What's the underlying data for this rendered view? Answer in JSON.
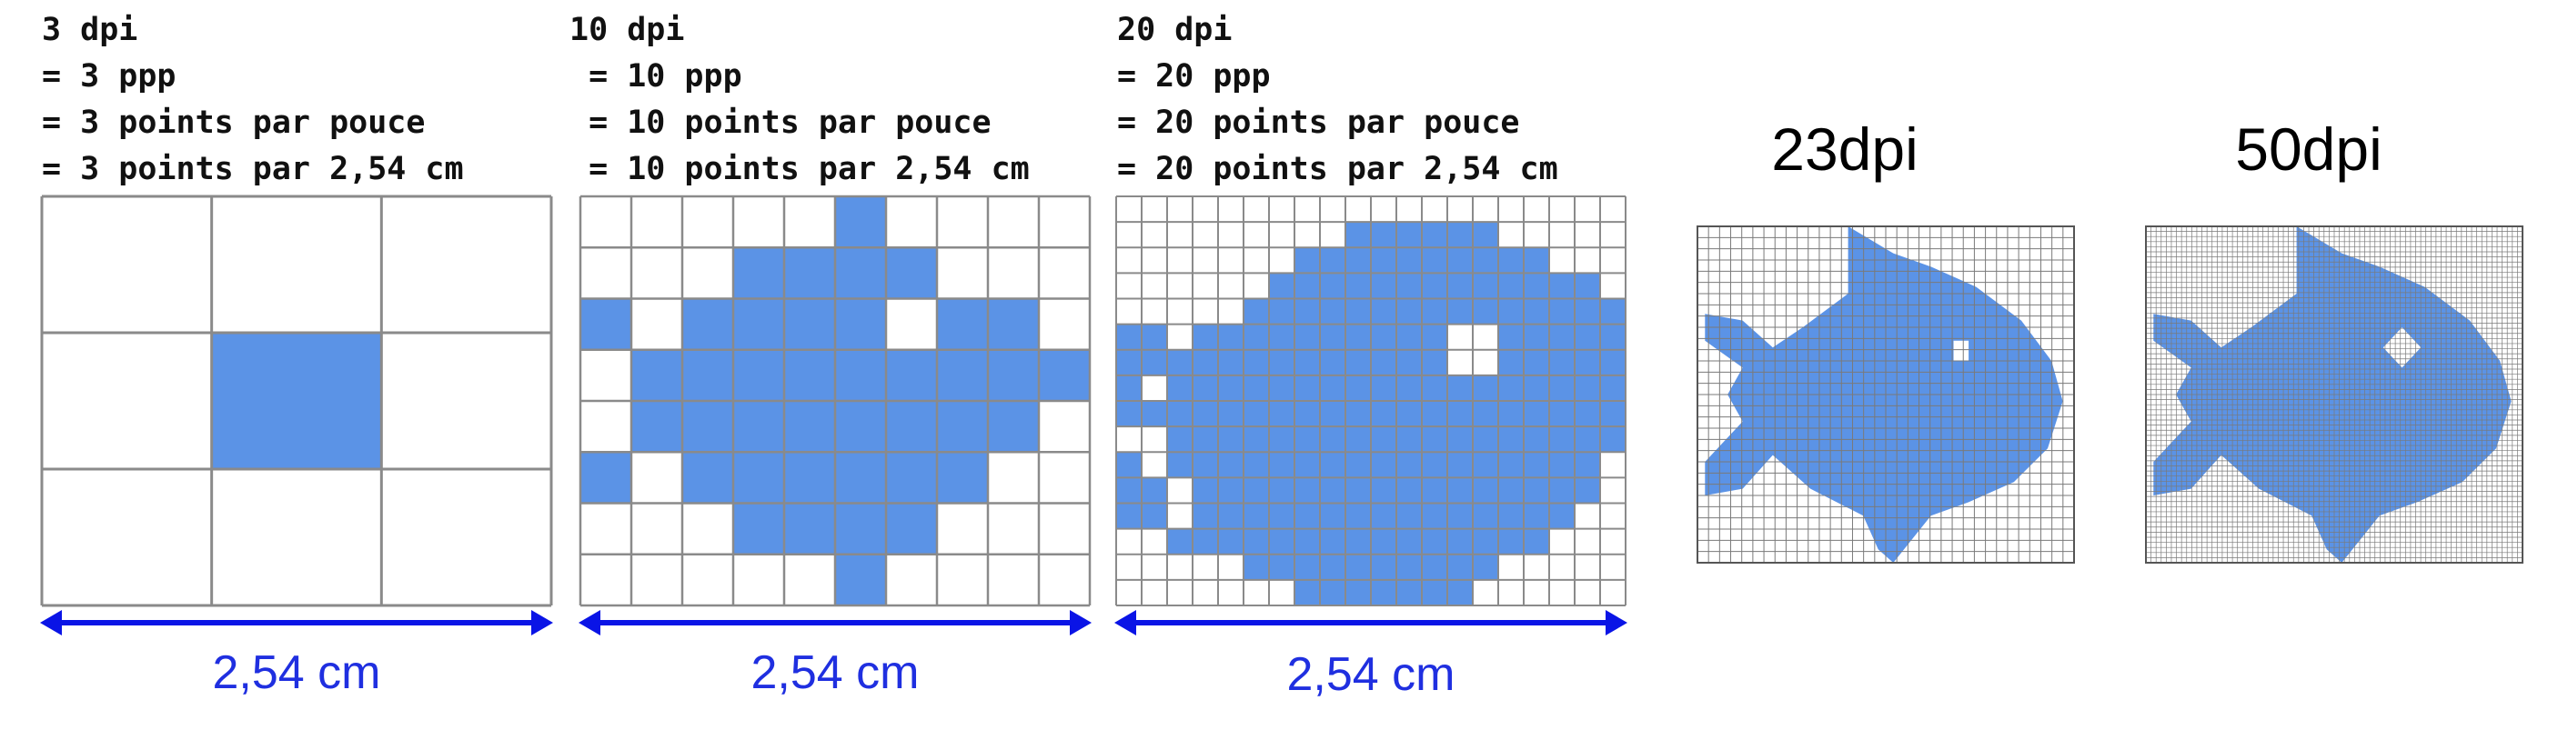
{
  "panels": [
    {
      "caption": [
        "3 dpi",
        "= 3 ppp",
        "= 3 points par pouce",
        "= 3 points par 2,54 cm"
      ],
      "width_label": "2,54 cm",
      "resolution": 3,
      "filled_cells": [
        [
          1,
          1
        ]
      ]
    },
    {
      "caption": [
        "10 dpi",
        " = 10 ppp",
        " = 10 points par pouce",
        " = 10 points par 2,54 cm"
      ],
      "width_label": "2,54 cm",
      "resolution": 10,
      "rows": [
        "0000010000",
        "0001111000",
        "1011110110",
        "0111111111",
        "0111111110",
        "1011111100",
        "0001111000",
        "0000010000"
      ]
    },
    {
      "caption": [
        "20 dpi",
        "= 20 ppp",
        "= 20 points par pouce",
        "= 20 points par 2,54 cm"
      ],
      "width_label": "2,54 cm",
      "resolution": 20,
      "rows": [
        "00000000000000000000",
        "00000000011111100000",
        "00000001111111111000",
        "00000011111111111110",
        "00000111111111111111",
        "11011111111110011111",
        "11111111111110011111",
        "10111111111111111111",
        "11111111111111111111",
        "00111111111111111111",
        "10111111111111111110",
        "11011111111111111110",
        "11011111111111111100",
        "00111111111111111000",
        "00000111111111100000",
        "00000001111111000000"
      ]
    },
    {
      "title": "23dpi",
      "resolution": 23
    },
    {
      "title": "50dpi",
      "resolution": 50
    }
  ],
  "colors": {
    "fill": "#5b93e6",
    "grid": "#8a8a8a",
    "arrow": "#0a14e6",
    "dim_text": "#1f2fe0"
  }
}
